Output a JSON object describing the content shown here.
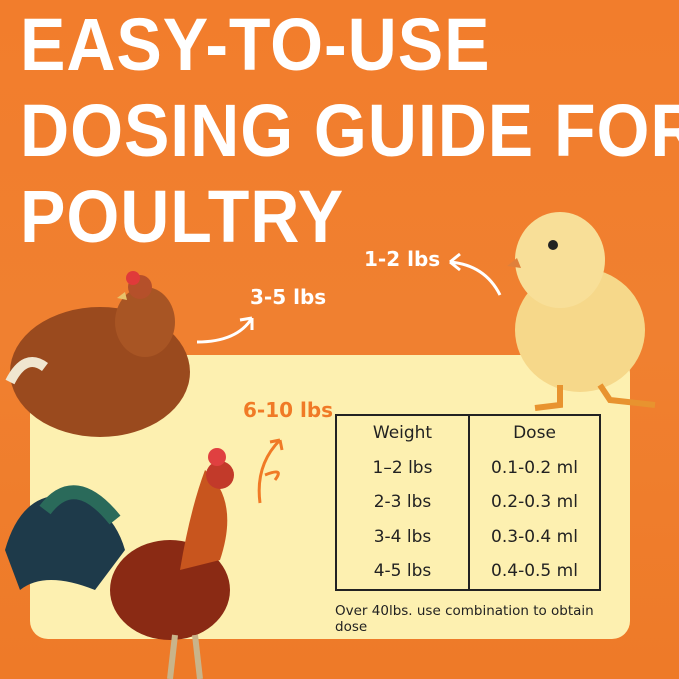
{
  "title": {
    "lines": [
      "EASY-TO-USE",
      "DOSING GUIDE FOR",
      "POULTRY"
    ]
  },
  "labels": {
    "chick": "1-2 lbs",
    "hen": "3-5 lbs",
    "rooster": "6-10 lbs"
  },
  "table": {
    "headers": [
      "Weight",
      "Dose"
    ],
    "rows": [
      [
        "1–2 lbs",
        "0.1-0.2 ml"
      ],
      [
        "2-3 lbs",
        "0.2-0.3 ml"
      ],
      [
        "3-4 lbs",
        "0.3-0.4 ml"
      ],
      [
        "4-5 lbs",
        "0.4-0.5 ml"
      ]
    ]
  },
  "note": "Over 40lbs. use combination to obtain dose",
  "colors": {
    "background": "#f07a2a",
    "panel": "#fdf0b0",
    "accent": "#f07a26"
  }
}
